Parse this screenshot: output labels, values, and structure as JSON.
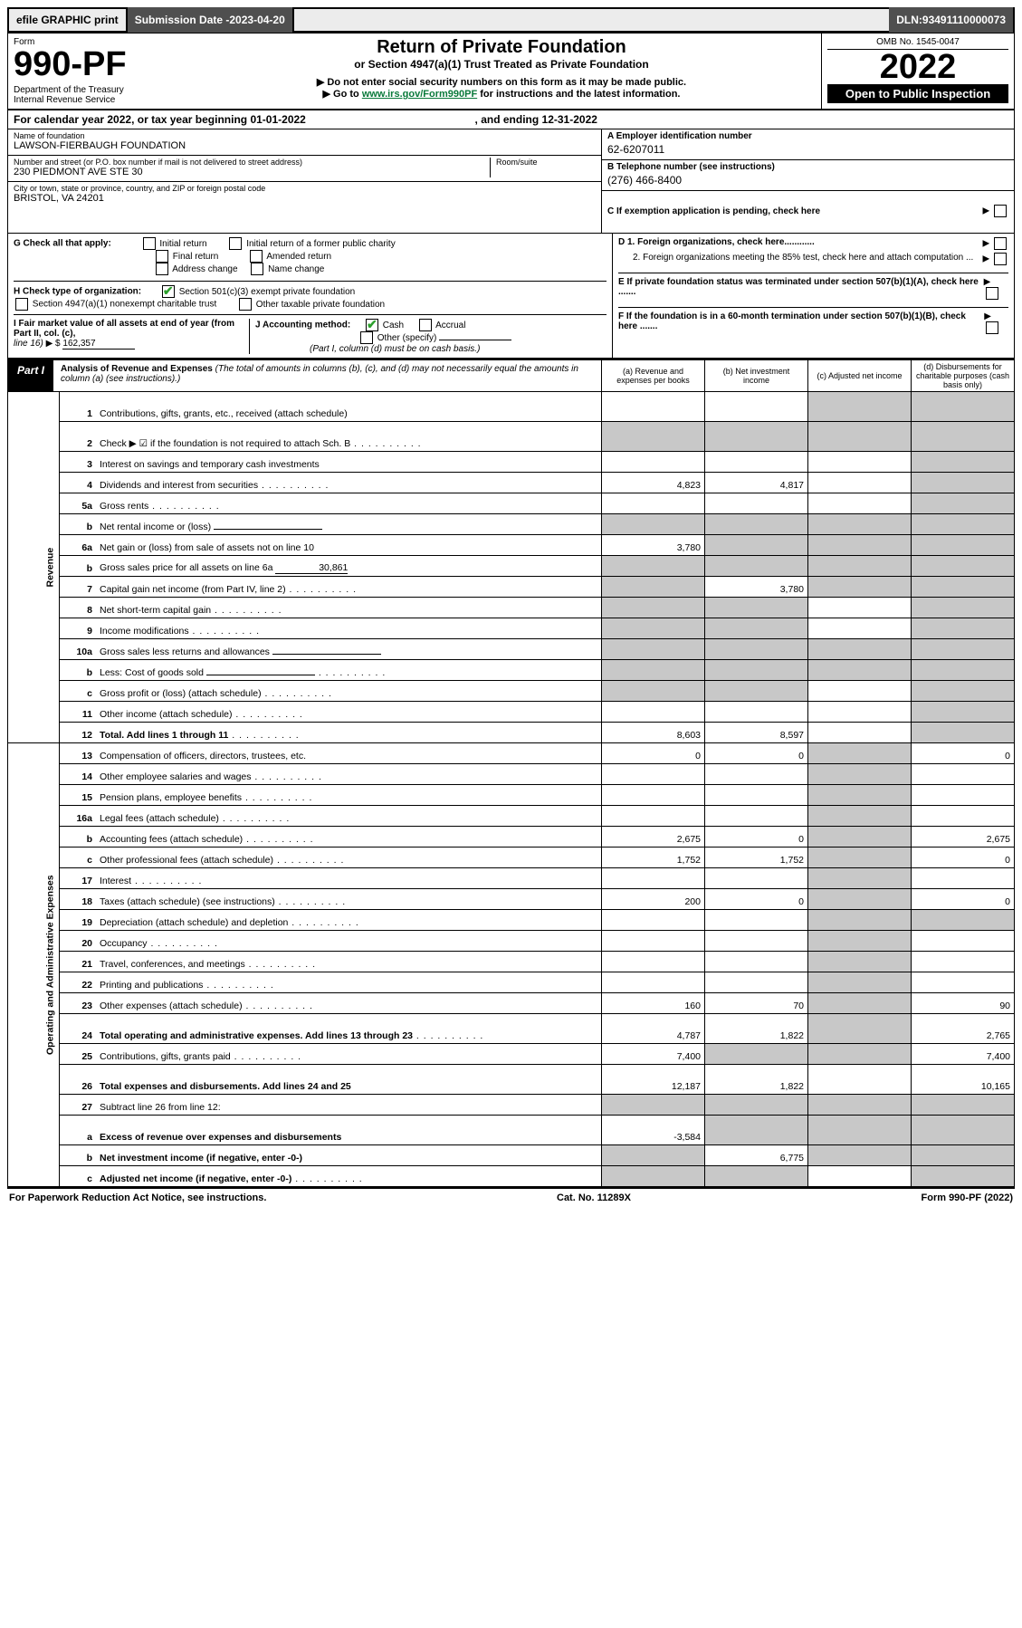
{
  "top": {
    "efile": "efile GRAPHIC print",
    "subdate_label": "Submission Date - ",
    "subdate": "2023-04-20",
    "dln_label": "DLN: ",
    "dln": "93491110000073"
  },
  "header": {
    "form_word": "Form",
    "form_no": "990-PF",
    "dept1": "Department of the Treasury",
    "dept2": "Internal Revenue Service",
    "title": "Return of Private Foundation",
    "subtitle": "or Section 4947(a)(1) Trust Treated as Private Foundation",
    "note1": "Do not enter social security numbers on this form as it may be made public.",
    "note2_pre": "Go to ",
    "note2_link": "www.irs.gov/Form990PF",
    "note2_post": " for instructions and the latest information.",
    "omb": "OMB No. 1545-0047",
    "year": "2022",
    "open": "Open to Public Inspection"
  },
  "calyear": {
    "text_pre": "For calendar year 2022, or tax year beginning ",
    "begin": "01-01-2022",
    "mid": " , and ending ",
    "end": "12-31-2022"
  },
  "id": {
    "name_label": "Name of foundation",
    "name": "LAWSON-FIERBAUGH FOUNDATION",
    "addr_label": "Number and street (or P.O. box number if mail is not delivered to street address)",
    "room_label": "Room/suite",
    "addr": "230 PIEDMONT AVE STE 30",
    "city_label": "City or town, state or province, country, and ZIP or foreign postal code",
    "city": "BRISTOL, VA  24201",
    "a_label": "A Employer identification number",
    "a_val": "62-6207011",
    "b_label": "B Telephone number (see instructions)",
    "b_val": "(276) 466-8400",
    "c_label": "C If exemption application is pending, check here"
  },
  "g": {
    "label": "G Check all that apply:",
    "items": [
      "Initial return",
      "Initial return of a former public charity",
      "Final return",
      "Amended return",
      "Address change",
      "Name change"
    ]
  },
  "h": {
    "label": "H Check type of organization:",
    "items": [
      "Section 501(c)(3) exempt private foundation",
      "Section 4947(a)(1) nonexempt charitable trust",
      "Other taxable private foundation"
    ]
  },
  "d": {
    "d1": "D 1. Foreign organizations, check here............",
    "d2": "2. Foreign organizations meeting the 85% test, check here and attach computation ...",
    "e": "E  If private foundation status was terminated under section 507(b)(1)(A), check here .......",
    "f": "F  If the foundation is in a 60-month termination under section 507(b)(1)(B), check here ......."
  },
  "i": {
    "label": "I Fair market value of all assets at end of year (from Part II, col. (c),",
    "line": "line 16)",
    "amount": "162,357"
  },
  "j": {
    "label": "J Accounting method:",
    "cash": "Cash",
    "accrual": "Accrual",
    "other": "Other (specify)",
    "note": "(Part I, column (d) must be on cash basis.)"
  },
  "part1": {
    "badge": "Part I",
    "title": "Analysis of Revenue and Expenses",
    "subtitle": "(The total of amounts in columns (b), (c), and (d) may not necessarily equal the amounts in column (a) (see instructions).)",
    "cols": {
      "a": "(a)  Revenue and expenses per books",
      "b": "(b)  Net investment income",
      "c": "(c)  Adjusted net income",
      "d": "(d)  Disbursements for charitable purposes (cash basis only)"
    }
  },
  "sidelabels": {
    "rev": "Revenue",
    "exp": "Operating and Administrative Expenses"
  },
  "lines": [
    {
      "n": "1",
      "d": "Contributions, gifts, grants, etc., received (attach schedule)",
      "a": "",
      "b": "",
      "c": "g",
      "dd": "g",
      "tall": true
    },
    {
      "n": "2",
      "d": "Check ▶ ☑ if the foundation is not required to attach Sch. B",
      "dots": true,
      "a": "g",
      "b": "g",
      "c": "g",
      "dd": "g",
      "tall": true,
      "bold_not": true
    },
    {
      "n": "3",
      "d": "Interest on savings and temporary cash investments",
      "a": "",
      "b": "",
      "c": "",
      "dd": "g"
    },
    {
      "n": "4",
      "d": "Dividends and interest from securities",
      "dots": true,
      "a": "4,823",
      "b": "4,817",
      "c": "",
      "dd": "g"
    },
    {
      "n": "5a",
      "d": "Gross rents",
      "dots": true,
      "a": "",
      "b": "",
      "c": "",
      "dd": "g"
    },
    {
      "n": "b",
      "d": "Net rental income or (loss)",
      "uline": true,
      "a": "g",
      "b": "g",
      "c": "g",
      "dd": "g"
    },
    {
      "n": "6a",
      "d": "Net gain or (loss) from sale of assets not on line 10",
      "a": "3,780",
      "b": "g",
      "c": "g",
      "dd": "g"
    },
    {
      "n": "b",
      "d": "Gross sales price for all assets on line 6a",
      "uline_val": "30,861",
      "a": "g",
      "b": "g",
      "c": "g",
      "dd": "g"
    },
    {
      "n": "7",
      "d": "Capital gain net income (from Part IV, line 2)",
      "dots": true,
      "a": "g",
      "b": "3,780",
      "c": "g",
      "dd": "g"
    },
    {
      "n": "8",
      "d": "Net short-term capital gain",
      "dots": true,
      "a": "g",
      "b": "g",
      "c": "",
      "dd": "g"
    },
    {
      "n": "9",
      "d": "Income modifications",
      "dots": true,
      "a": "g",
      "b": "g",
      "c": "",
      "dd": "g"
    },
    {
      "n": "10a",
      "d": "Gross sales less returns and allowances",
      "uline": true,
      "a": "g",
      "b": "g",
      "c": "g",
      "dd": "g"
    },
    {
      "n": "b",
      "d": "Less: Cost of goods sold",
      "dots": true,
      "uline": true,
      "a": "g",
      "b": "g",
      "c": "g",
      "dd": "g"
    },
    {
      "n": "c",
      "d": "Gross profit or (loss) (attach schedule)",
      "dots": true,
      "a": "g",
      "b": "g",
      "c": "",
      "dd": "g"
    },
    {
      "n": "11",
      "d": "Other income (attach schedule)",
      "dots": true,
      "a": "",
      "b": "",
      "c": "",
      "dd": "g"
    },
    {
      "n": "12",
      "d": "Total. Add lines 1 through 11",
      "dots": true,
      "bold": true,
      "a": "8,603",
      "b": "8,597",
      "c": "",
      "dd": "g"
    },
    {
      "n": "13",
      "d": "Compensation of officers, directors, trustees, etc.",
      "a": "0",
      "b": "0",
      "c": "g",
      "dd": "0"
    },
    {
      "n": "14",
      "d": "Other employee salaries and wages",
      "dots": true,
      "a": "",
      "b": "",
      "c": "g",
      "dd": ""
    },
    {
      "n": "15",
      "d": "Pension plans, employee benefits",
      "dots": true,
      "a": "",
      "b": "",
      "c": "g",
      "dd": ""
    },
    {
      "n": "16a",
      "d": "Legal fees (attach schedule)",
      "dots": true,
      "a": "",
      "b": "",
      "c": "g",
      "dd": ""
    },
    {
      "n": "b",
      "d": "Accounting fees (attach schedule)",
      "dots": true,
      "a": "2,675",
      "b": "0",
      "c": "g",
      "dd": "2,675"
    },
    {
      "n": "c",
      "d": "Other professional fees (attach schedule)",
      "dots": true,
      "a": "1,752",
      "b": "1,752",
      "c": "g",
      "dd": "0"
    },
    {
      "n": "17",
      "d": "Interest",
      "dots": true,
      "a": "",
      "b": "",
      "c": "g",
      "dd": ""
    },
    {
      "n": "18",
      "d": "Taxes (attach schedule) (see instructions)",
      "dots": true,
      "a": "200",
      "b": "0",
      "c": "g",
      "dd": "0"
    },
    {
      "n": "19",
      "d": "Depreciation (attach schedule) and depletion",
      "dots": true,
      "a": "",
      "b": "",
      "c": "g",
      "dd": "g"
    },
    {
      "n": "20",
      "d": "Occupancy",
      "dots": true,
      "a": "",
      "b": "",
      "c": "g",
      "dd": ""
    },
    {
      "n": "21",
      "d": "Travel, conferences, and meetings",
      "dots": true,
      "a": "",
      "b": "",
      "c": "g",
      "dd": ""
    },
    {
      "n": "22",
      "d": "Printing and publications",
      "dots": true,
      "a": "",
      "b": "",
      "c": "g",
      "dd": ""
    },
    {
      "n": "23",
      "d": "Other expenses (attach schedule)",
      "dots": true,
      "a": "160",
      "b": "70",
      "c": "g",
      "dd": "90"
    },
    {
      "n": "24",
      "d": "Total operating and administrative expenses. Add lines 13 through 23",
      "dots": true,
      "bold": true,
      "a": "4,787",
      "b": "1,822",
      "c": "g",
      "dd": "2,765",
      "tall": true
    },
    {
      "n": "25",
      "d": "Contributions, gifts, grants paid",
      "dots": true,
      "a": "7,400",
      "b": "g",
      "c": "g",
      "dd": "7,400"
    },
    {
      "n": "26",
      "d": "Total expenses and disbursements. Add lines 24 and 25",
      "bold": true,
      "a": "12,187",
      "b": "1,822",
      "c": "",
      "dd": "10,165",
      "tall": true
    },
    {
      "n": "27",
      "d": "Subtract line 26 from line 12:",
      "a": "g",
      "b": "g",
      "c": "g",
      "dd": "g"
    },
    {
      "n": "a",
      "d": "Excess of revenue over expenses and disbursements",
      "bold": true,
      "a": "-3,584",
      "b": "g",
      "c": "g",
      "dd": "g",
      "tall": true
    },
    {
      "n": "b",
      "d": "Net investment income (if negative, enter -0-)",
      "bold": true,
      "a": "g",
      "b": "6,775",
      "c": "g",
      "dd": "g"
    },
    {
      "n": "c",
      "d": "Adjusted net income (if negative, enter -0-)",
      "dots": true,
      "bold": true,
      "a": "g",
      "b": "g",
      "c": "",
      "dd": "g"
    }
  ],
  "footer": {
    "left": "For Paperwork Reduction Act Notice, see instructions.",
    "mid": "Cat. No. 11289X",
    "right": "Form 990-PF (2022)"
  },
  "colors": {
    "grey_cell": "#c8c8c8",
    "top_dark": "#4f4f4f",
    "check_green": "#2ca02c",
    "link_green": "#0a7a3b"
  }
}
